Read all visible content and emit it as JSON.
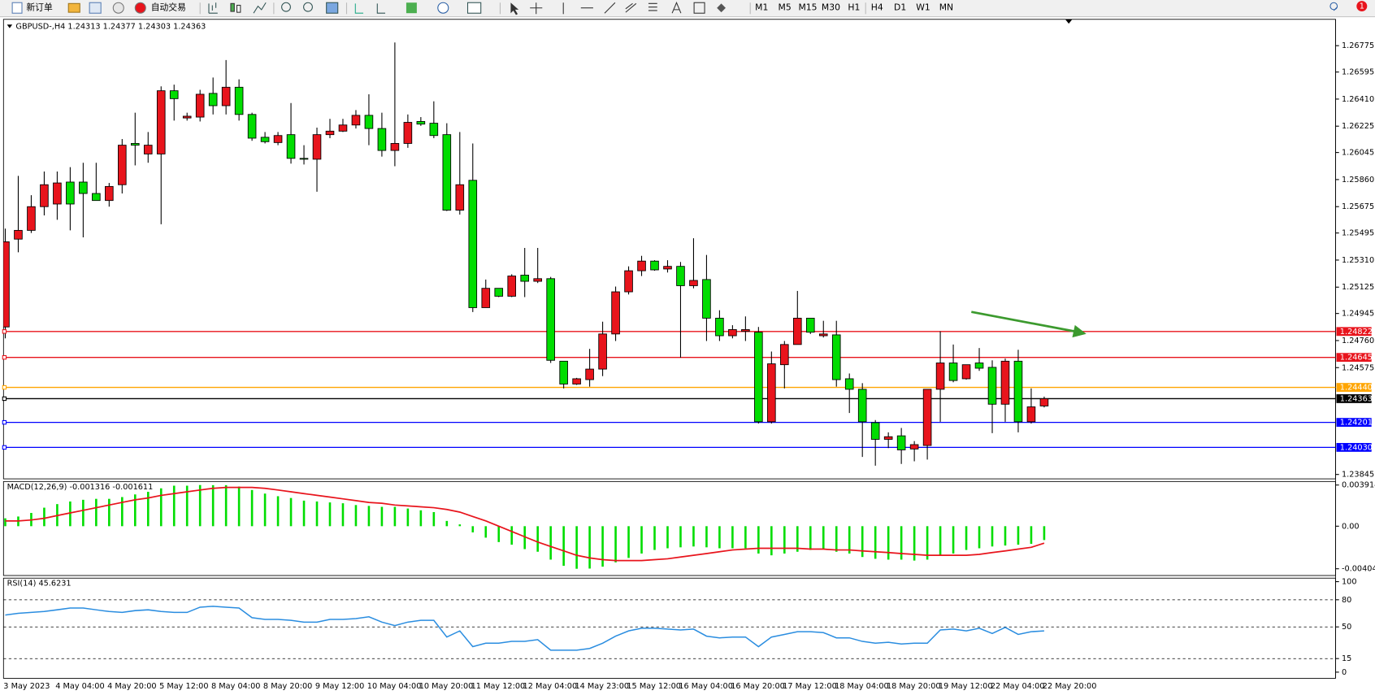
{
  "toolbar": {
    "new_order": "新订单",
    "auto_trading": "自动交易",
    "timeframes": [
      "M1",
      "M5",
      "M15",
      "M30",
      "H1",
      "H4",
      "D1",
      "W1",
      "MN"
    ],
    "notifications": 1
  },
  "chart_data": [
    {
      "type": "candlestick",
      "title": "GBPUSD-,H4  1.24313 1.24377 1.24303 1.24363",
      "categories": [
        "3 May 2023",
        null,
        null,
        null,
        "4 May 04:00",
        null,
        null,
        null,
        "4 May 20:00",
        null,
        null,
        null,
        "5 May 12:00",
        null,
        null,
        null,
        "8 May 04:00",
        null,
        null,
        null,
        "8 May 20:00",
        null,
        null,
        null,
        "9 May 12:00",
        null,
        null,
        null,
        "10 May 04:00",
        null,
        null,
        null,
        "10 May 20:00",
        null,
        null,
        null,
        "11 May 12:00",
        null,
        null,
        null,
        "12 May 04:00",
        null,
        null,
        null,
        "14 May 23:00",
        null,
        null,
        null,
        "15 May 12:00",
        null,
        null,
        null,
        "16 May 04:00",
        null,
        null,
        null,
        "16 May 20:00",
        null,
        null,
        null,
        "17 May 12:00",
        null,
        null,
        null,
        "18 May 04:00",
        null,
        null,
        null,
        "18 May 20:00",
        null,
        null,
        null,
        "19 May 12:00",
        null,
        null,
        null,
        "22 May 04:00",
        null,
        null,
        null,
        "22 May 20:00"
      ],
      "open": [
        1.24853,
        1.25453,
        1.25513,
        1.25675,
        1.25693,
        1.25843,
        1.25843,
        1.25765,
        1.25717,
        1.25825,
        1.26107,
        1.26035,
        1.26035,
        1.26467,
        1.26281,
        1.26287,
        1.26449,
        1.26365,
        1.26491,
        1.26305,
        1.26149,
        1.26113,
        1.26167,
        1.26005,
        1.25999,
        1.26167,
        1.26191,
        1.26233,
        1.26299,
        1.26209,
        1.26059,
        1.26107,
        1.26257,
        1.26245,
        1.26167,
        1.25651,
        1.25855,
        1.24985,
        1.25117,
        1.25063,
        1.25207,
        1.25165,
        1.25183,
        1.24619,
        1.24463,
        1.24493,
        1.24565,
        1.24805,
        1.25093,
        1.25237,
        1.25303,
        1.25249,
        1.25267,
        1.25135,
        1.25177,
        1.24913,
        1.24793,
        1.24823,
        1.24817,
        1.24205,
        1.24595,
        1.24733,
        1.24913,
        1.24793,
        1.24799,
        1.24499,
        1.24427,
        1.24199,
        1.24085,
        1.24109,
        1.24019,
        1.24043,
        1.24427,
        1.24607,
        1.24499,
        1.24607,
        1.24577,
        1.24325,
        1.24619,
        1.24205,
        1.24313
      ],
      "high": [
        1.25525,
        1.25885,
        1.25753,
        1.25915,
        1.25915,
        1.25945,
        1.25975,
        1.25975,
        1.25837,
        1.26137,
        1.26317,
        1.26185,
        1.26497,
        1.26509,
        1.26317,
        1.26473,
        1.26557,
        1.26677,
        1.26545,
        1.26317,
        1.26185,
        1.26185,
        1.26383,
        1.26095,
        1.26215,
        1.26275,
        1.26275,
        1.26335,
        1.26443,
        1.26317,
        1.26797,
        1.26305,
        1.26287,
        1.26395,
        1.26245,
        1.26185,
        1.26107,
        1.25177,
        1.25117,
        1.25213,
        1.25393,
        1.25393,
        1.25195,
        1.24619,
        1.24505,
        1.24703,
        1.24889,
        1.25129,
        1.25267,
        1.25339,
        1.25309,
        1.25309,
        1.25297,
        1.25459,
        1.25345,
        1.24967,
        1.24865,
        1.24925,
        1.24853,
        1.24685,
        1.24757,
        1.25099,
        1.24913,
        1.24895,
        1.24895,
        1.24535,
        1.24469,
        1.24217,
        1.24133,
        1.24163,
        1.24073,
        1.24427,
        1.24823,
        1.24733,
        1.24595,
        1.24709,
        1.24625,
        1.24637,
        1.24697,
        1.24433,
        1.24377
      ],
      "low": [
        1.24775,
        1.25363,
        1.25495,
        1.25615,
        1.25585,
        1.25513,
        1.25465,
        1.25717,
        1.25675,
        1.25765,
        1.25957,
        1.25975,
        1.25555,
        1.26263,
        1.26263,
        1.26257,
        1.26305,
        1.26305,
        1.26263,
        1.26125,
        1.26107,
        1.26095,
        1.25969,
        1.25963,
        1.25777,
        1.26143,
        1.26185,
        1.26209,
        1.26095,
        1.26017,
        1.25951,
        1.26077,
        1.26227,
        1.26143,
        1.25645,
        1.25621,
        1.24955,
        1.24985,
        1.25057,
        1.25057,
        1.25057,
        1.25153,
        1.24607,
        1.24433,
        1.24457,
        1.24445,
        1.24517,
        1.24757,
        1.25075,
        1.25201,
        1.25237,
        1.25225,
        1.24643,
        1.25117,
        1.24757,
        1.24757,
        1.24775,
        1.24757,
        1.24193,
        1.24193,
        1.24433,
        1.24733,
        1.24805,
        1.24781,
        1.24445,
        1.24265,
        1.23965,
        1.23905,
        1.24025,
        1.23917,
        1.23935,
        1.23947,
        1.24205,
        1.24475,
        1.24493,
        1.24553,
        1.24127,
        1.24205,
        1.24133,
        1.24193,
        1.24303
      ],
      "close": [
        1.25435,
        1.25513,
        1.25675,
        1.25825,
        1.25837,
        1.25693,
        1.25765,
        1.25717,
        1.25813,
        1.26095,
        1.26095,
        1.26095,
        1.26467,
        1.26413,
        1.26293,
        1.26443,
        1.26365,
        1.26491,
        1.26305,
        1.26143,
        1.26119,
        1.26161,
        1.26005,
        1.25999,
        1.26167,
        1.26191,
        1.26233,
        1.26299,
        1.26209,
        1.26059,
        1.26107,
        1.26251,
        1.26239,
        1.26161,
        1.25651,
        1.25825,
        1.24985,
        1.25117,
        1.25063,
        1.25201,
        1.25165,
        1.25183,
        1.24625,
        1.24463,
        1.24499,
        1.24565,
        1.24805,
        1.25093,
        1.25237,
        1.25303,
        1.25243,
        1.25267,
        1.25135,
        1.25171,
        1.24913,
        1.24793,
        1.24835,
        1.24835,
        1.24205,
        1.24601,
        1.24733,
        1.24913,
        1.24817,
        1.24805,
        1.24493,
        1.24427,
        1.24205,
        1.24085,
        1.24103,
        1.24013,
        1.24049,
        1.24427,
        1.24607,
        1.24487,
        1.24595,
        1.24571,
        1.24325,
        1.24619,
        1.24205,
        1.24307,
        1.24363
      ],
      "up_color": "#e8141c",
      "down_color": "#00dd00",
      "ylim": [
        1.23815,
        1.26955
      ],
      "yticks": [
        1.26775,
        1.26595,
        {
          "value": 1.2641,
          "label": "1.26410"
        },
        1.26225,
        1.26045,
        {
          "value": 1.2586,
          "label": "1.25860"
        },
        1.25675,
        1.25495,
        {
          "value": 1.2531,
          "label": "1.25310"
        },
        1.25125,
        1.24945,
        {
          "value": 1.2476,
          "label": "1.24760"
        },
        1.24575,
        1.23845
      ],
      "hlines": [
        {
          "value": 1.24822,
          "label": "1.24822",
          "color": "#e8141c"
        },
        {
          "value": 1.24645,
          "label": "1.24645",
          "color": "#e8141c"
        },
        {
          "value": 1.2444,
          "label": "1.24440",
          "color": "#ffa500"
        },
        {
          "value": 1.24363,
          "label": "1.24363",
          "color": "#000000"
        },
        {
          "value": 1.24201,
          "label": "1.24201",
          "color": "#0000ff"
        },
        {
          "value": 1.2403,
          "label": "1.24030",
          "color": "#0000ff"
        }
      ]
    },
    {
      "type": "macd",
      "title": "MACD(12,26,9) -0.001316 -0.001611",
      "histogram": {
        "color": "#00dd00",
        "values": [
          0.00075,
          0.00092,
          0.00126,
          0.00176,
          0.0021,
          0.00235,
          0.00251,
          0.0026,
          0.0026,
          0.00277,
          0.00302,
          0.00327,
          0.0036,
          0.00385,
          0.00385,
          0.003914,
          0.0039,
          0.0039,
          0.00377,
          0.00344,
          0.0031,
          0.00285,
          0.00268,
          0.00243,
          0.00235,
          0.00226,
          0.00218,
          0.00201,
          0.00193,
          0.00184,
          0.00184,
          0.00168,
          0.00151,
          0.00134,
          0.0005,
          0.00017,
          -0.00059,
          -0.00109,
          -0.00151,
          -0.00176,
          -0.00218,
          -0.00243,
          -0.00318,
          -0.00377,
          -0.004049,
          -0.00403,
          -0.00385,
          -0.00344,
          -0.00302,
          -0.0026,
          -0.00226,
          -0.0021,
          -0.00201,
          -0.00193,
          -0.00201,
          -0.0021,
          -0.0021,
          -0.0021,
          -0.0026,
          -0.00277,
          -0.0026,
          -0.00243,
          -0.00226,
          -0.00218,
          -0.00243,
          -0.0026,
          -0.00293,
          -0.0031,
          -0.00318,
          -0.00318,
          -0.00327,
          -0.00318,
          -0.00277,
          -0.0026,
          -0.00226,
          -0.0021,
          -0.00193,
          -0.00184,
          -0.00176,
          -0.00168,
          -0.001316
        ]
      },
      "signal": {
        "color": "#e8141c",
        "values": [
          0.0005,
          0.0005,
          0.00059,
          0.00075,
          0.00101,
          0.00126,
          0.00151,
          0.00176,
          0.00201,
          0.00226,
          0.00251,
          0.00268,
          0.00293,
          0.0031,
          0.00327,
          0.00344,
          0.0036,
          0.00369,
          0.00369,
          0.00369,
          0.0036,
          0.00344,
          0.00327,
          0.0031,
          0.00293,
          0.00277,
          0.0026,
          0.00243,
          0.00226,
          0.00218,
          0.00201,
          0.00193,
          0.00184,
          0.00176,
          0.00159,
          0.00134,
          0.00092,
          0.0005,
          0,
          -0.0005,
          -0.00101,
          -0.00151,
          -0.00193,
          -0.00235,
          -0.00277,
          -0.00302,
          -0.00318,
          -0.00327,
          -0.00327,
          -0.00327,
          -0.00318,
          -0.0031,
          -0.00293,
          -0.00277,
          -0.0026,
          -0.00243,
          -0.00226,
          -0.00218,
          -0.0021,
          -0.0021,
          -0.0021,
          -0.0021,
          -0.00218,
          -0.00218,
          -0.00226,
          -0.00226,
          -0.00235,
          -0.00243,
          -0.00251,
          -0.0026,
          -0.00268,
          -0.00277,
          -0.00277,
          -0.00277,
          -0.00277,
          -0.00268,
          -0.00251,
          -0.00235,
          -0.00218,
          -0.00201,
          -0.001611
        ]
      },
      "ylim": [
        -0.00469,
        0.00425
      ],
      "yticks": [
        0.003914,
        {
          "value": 0,
          "label": "0.00"
        },
        -0.004049
      ]
    },
    {
      "type": "line",
      "title": "RSI(14) 45.6231",
      "color": "#2a8de0",
      "values": [
        63.1,
        65,
        66,
        67,
        68.9,
        70.9,
        70.9,
        68.9,
        67,
        66,
        68,
        68.9,
        67,
        66,
        66,
        71.8,
        72.8,
        71.8,
        70.9,
        60.2,
        58.3,
        58.3,
        57.3,
        55.3,
        55.3,
        58.3,
        58.3,
        59.2,
        61.2,
        55.3,
        51.5,
        55.3,
        57.3,
        57.3,
        38.8,
        45.6,
        28.2,
        32,
        32,
        34,
        34,
        35.9,
        24.3,
        24.3,
        24.3,
        26.2,
        32,
        39.8,
        45.6,
        48.5,
        48.5,
        47.6,
        46.6,
        47.6,
        39.8,
        37.9,
        38.8,
        38.8,
        28.2,
        38.8,
        41.7,
        44.7,
        44.7,
        43.7,
        37.9,
        37.9,
        34,
        32,
        33,
        31.1,
        32,
        32,
        46.6,
        47.6,
        45.6,
        48.5,
        42.7,
        49.5,
        41.7,
        44.7,
        45.6231
      ],
      "ylim": [
        0,
        100
      ],
      "yticks": [
        100,
        80,
        50,
        15,
        0
      ],
      "levels": [
        80,
        50,
        15
      ]
    }
  ]
}
